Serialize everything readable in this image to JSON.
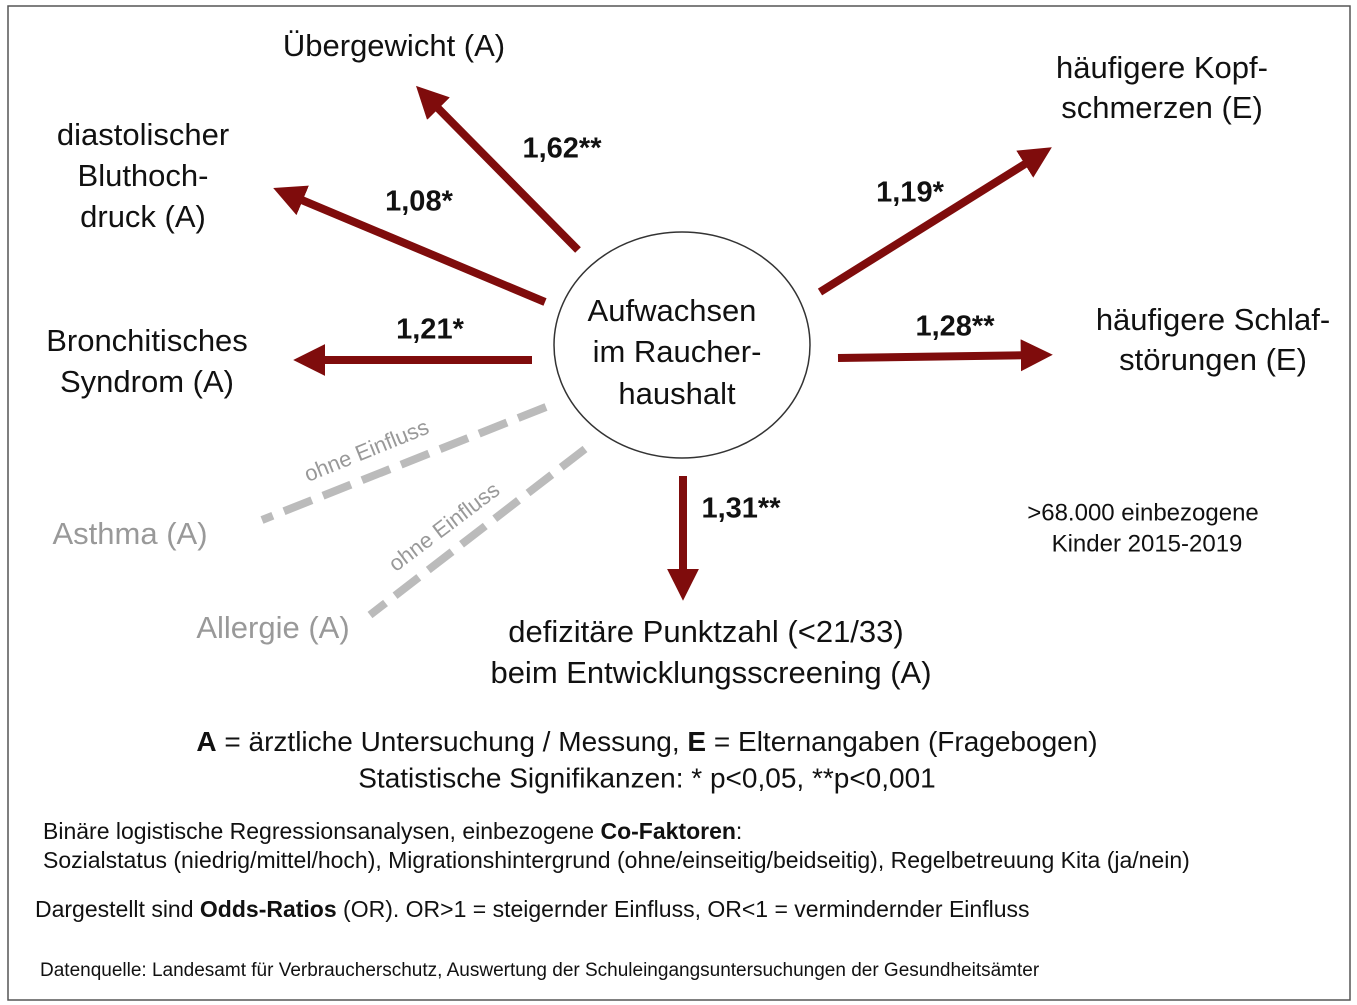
{
  "center": {
    "lines": [
      "Aufwachsen",
      "im Raucher-",
      "haushalt"
    ]
  },
  "outcomes": [
    {
      "lines": [
        "Übergewicht (A)"
      ],
      "or": "1,62**"
    },
    {
      "lines": [
        "diastolischer",
        "Bluthoch-",
        "druck (A)"
      ],
      "or": "1,08*"
    },
    {
      "lines": [
        "Bronchitisches",
        "Syndrom (A)"
      ],
      "or": "1,21*"
    },
    {
      "lines": [
        "Asthma (A)"
      ],
      "or": "ohne Einfluss"
    },
    {
      "lines": [
        "Allergie (A)"
      ],
      "or": "ohne Einfluss"
    },
    {
      "lines": [
        "defizitäre Punktzahl (<21/33)",
        "beim Entwicklungsscreening (A)"
      ],
      "or": "1,31**"
    },
    {
      "lines": [
        "häufigere Kopf-",
        "schmerzen (E)"
      ],
      "or": "1,19*"
    },
    {
      "lines": [
        "häufigere Schlaf-",
        "störungen (E)"
      ],
      "or": "1,28**"
    }
  ],
  "note": [
    ">68.000 einbezogene",
    "Kinder 2015-2019"
  ],
  "legend": {
    "line1": [
      "A",
      " = ärztliche Untersuchung / Messung, ",
      "E",
      " = Elternangaben (Fragebogen)"
    ],
    "line2": "Statistische Signifikanzen: * p<0,05, **p<0,001"
  },
  "methods": {
    "line1": [
      "Binäre logistische Regressionsanalysen, einbezogene ",
      "Co-Faktoren",
      ":"
    ],
    "line2": "Sozialstatus (niedrig/mittel/hoch), Migrationshintergrund (ohne/einseitig/beidseitig), Regelbetreuung Kita (ja/nein)"
  },
  "odds": [
    "Dargestellt sind ",
    "Odds-Ratios",
    " (OR). OR>1 = steigernder Einfluss, OR<1 = vermindernder Einfluss"
  ],
  "source": "Datenquelle: Landesamt für Verbraucherschutz, Auswertung der Schuleingangsuntersuchungen der Gesundheitsämter"
}
